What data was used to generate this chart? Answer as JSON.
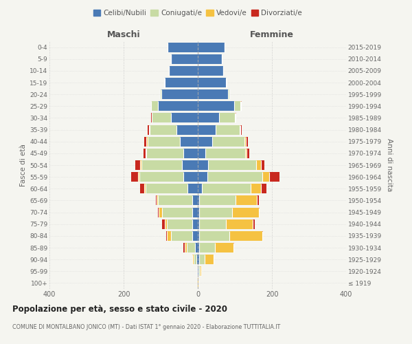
{
  "age_groups": [
    "100+",
    "95-99",
    "90-94",
    "85-89",
    "80-84",
    "75-79",
    "70-74",
    "65-69",
    "60-64",
    "55-59",
    "50-54",
    "45-49",
    "40-44",
    "35-39",
    "30-34",
    "25-29",
    "20-24",
    "15-19",
    "10-14",
    "5-9",
    "0-4"
  ],
  "birth_years": [
    "≤ 1919",
    "1920-1924",
    "1925-1929",
    "1930-1934",
    "1935-1939",
    "1940-1944",
    "1945-1949",
    "1950-1954",
    "1955-1959",
    "1960-1964",
    "1965-1969",
    "1970-1974",
    "1975-1979",
    "1980-1984",
    "1985-1989",
    "1990-1994",
    "1995-1999",
    "2000-2004",
    "2005-2009",
    "2010-2014",
    "2015-2019"
  ],
  "maschi": {
    "celibi": [
      0,
      2,
      3,
      8,
      15,
      15,
      15,
      15,
      28,
      38,
      42,
      38,
      48,
      58,
      72,
      108,
      98,
      88,
      78,
      72,
      82
    ],
    "coniugati": [
      0,
      0,
      8,
      22,
      58,
      68,
      82,
      92,
      112,
      120,
      110,
      100,
      88,
      72,
      52,
      18,
      4,
      2,
      0,
      0,
      0
    ],
    "vedovi": [
      0,
      0,
      4,
      5,
      10,
      5,
      8,
      4,
      4,
      4,
      4,
      2,
      2,
      2,
      0,
      0,
      0,
      0,
      0,
      0,
      0
    ],
    "divorziati": [
      0,
      0,
      0,
      4,
      2,
      8,
      2,
      2,
      12,
      18,
      12,
      6,
      6,
      4,
      2,
      0,
      0,
      0,
      0,
      0,
      0
    ]
  },
  "femmine": {
    "nubili": [
      0,
      2,
      4,
      4,
      4,
      4,
      4,
      4,
      12,
      26,
      28,
      20,
      38,
      48,
      58,
      98,
      82,
      75,
      68,
      65,
      72
    ],
    "coniugate": [
      0,
      4,
      14,
      42,
      82,
      72,
      88,
      98,
      130,
      148,
      130,
      108,
      88,
      65,
      42,
      16,
      4,
      2,
      0,
      0,
      0
    ],
    "vedove": [
      2,
      4,
      25,
      50,
      88,
      72,
      72,
      58,
      28,
      18,
      12,
      4,
      4,
      2,
      2,
      2,
      0,
      0,
      0,
      0,
      0
    ],
    "divorziate": [
      0,
      0,
      0,
      2,
      2,
      5,
      2,
      4,
      16,
      28,
      10,
      6,
      6,
      4,
      2,
      2,
      0,
      0,
      0,
      0,
      0
    ]
  },
  "colors": {
    "celibi_nubili": "#4a7ab5",
    "coniugati": "#c8dba4",
    "vedovi": "#f5c242",
    "divorziati": "#c8281e"
  },
  "title": "Popolazione per età, sesso e stato civile - 2020",
  "subtitle": "COMUNE DI MONTALBANO JONICO (MT) - Dati ISTAT 1° gennaio 2020 - Elaborazione TUTTITALIA.IT",
  "xlabel_left": "Maschi",
  "xlabel_right": "Femmine",
  "ylabel_left": "Fasce di età",
  "ylabel_right": "Anni di nascita",
  "xlim": 400,
  "background_color": "#f5f5f0",
  "plot_bg": "#f5f5f0",
  "grid_color": "#cccccc"
}
